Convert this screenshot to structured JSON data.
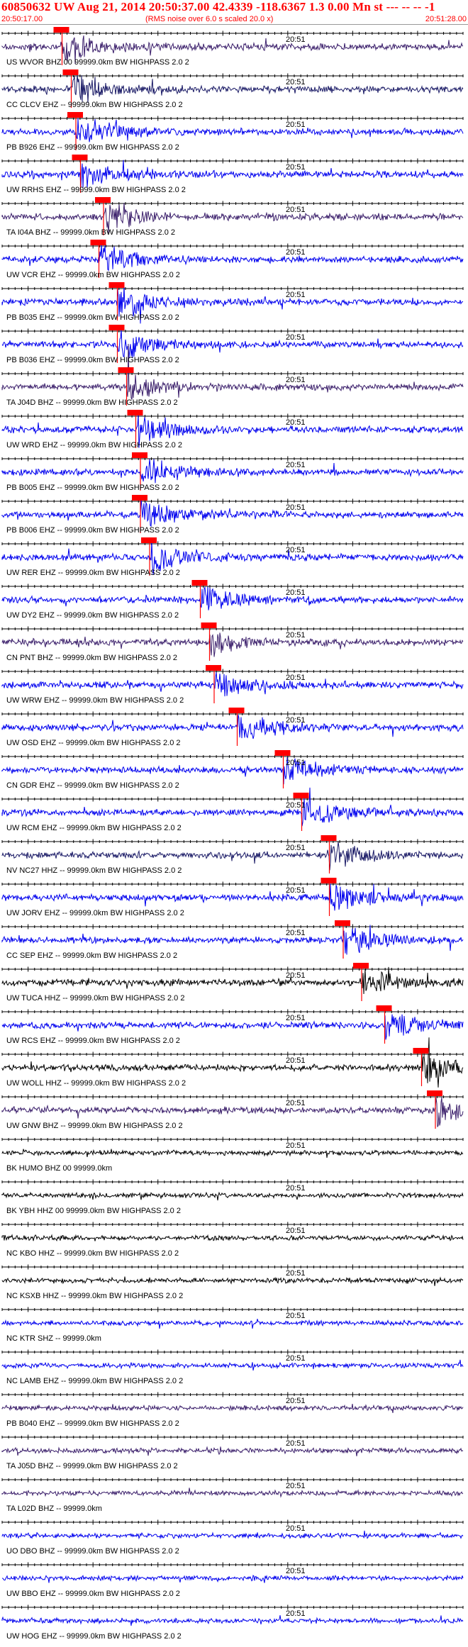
{
  "header": {
    "event_line": "60850632 UW Aug 21, 2014 20:50:37.00   42.4339 -118.6367  1.3 0.00 Mn st --- -- --  -1",
    "start_time": "20:50:17.00",
    "noise_note": "(RMS noise over 6.0 s scaled 20.0 x)",
    "end_time": "20:51:28.00"
  },
  "minute_marker": "20:51",
  "colors": {
    "title": "#ff0000",
    "pick": "#ff0000",
    "blue": "#0000ee",
    "navy": "#1a1a66",
    "purple": "#3b1f6b",
    "black": "#000000"
  },
  "channels": [
    {
      "label": "US WVOR BHZ 00 99999.0km BW  HIGHPASS  2.0  2",
      "color": "#3b1f6b",
      "pick": 0.13
    },
    {
      "label": "CC CLCV EHZ -- 99999.0km BW  HIGHPASS  2.0  2",
      "color": "#1a1a66",
      "pick": 0.15
    },
    {
      "label": "PB B926 EHZ -- 99999.0km BW  HIGHPASS  2.0  2",
      "color": "#0000ee",
      "pick": 0.16
    },
    {
      "label": "UW RRHS EHZ -- 99999.0km BW  HIGHPASS  2.0  2",
      "color": "#0000ee",
      "pick": 0.17
    },
    {
      "label": "TA I04A BHZ -- 99999.0km BW  HIGHPASS  2.0  2",
      "color": "#3b1f6b",
      "pick": 0.22
    },
    {
      "label": "UW VCR EHZ -- 99999.0km BW  HIGHPASS  2.0  2",
      "color": "#0000ee",
      "pick": 0.21
    },
    {
      "label": "PB B035 EHZ -- 99999.0km BW  HIGHPASS  2.0  2",
      "color": "#0000ee",
      "pick": 0.25
    },
    {
      "label": "PB B036 EHZ -- 99999.0km BW  HIGHPASS  2.0  2",
      "color": "#0000ee",
      "pick": 0.25
    },
    {
      "label": "TA J04D BHZ -- 99999.0km BW  HIGHPASS  2.0  2",
      "color": "#3b1f6b",
      "pick": 0.27
    },
    {
      "label": "UW WRD EHZ -- 99999.0km BW  HIGHPASS  2.0  2",
      "color": "#0000ee",
      "pick": 0.29
    },
    {
      "label": "PB B005 EHZ -- 99999.0km BW  HIGHPASS  2.0  2",
      "color": "#0000ee",
      "pick": 0.3
    },
    {
      "label": "PB B006 EHZ -- 99999.0km BW  HIGHPASS  2.0  2",
      "color": "#0000ee",
      "pick": 0.3
    },
    {
      "label": "UW RER EHZ -- 99999.0km BW  HIGHPASS  2.0  2",
      "color": "#0000ee",
      "pick": 0.32
    },
    {
      "label": "UW DY2 EHZ -- 99999.0km BW  HIGHPASS  2.0  2",
      "color": "#0000ee",
      "pick": 0.43
    },
    {
      "label": "CN PNT BHZ -- 99999.0km BW  HIGHPASS  2.0  2",
      "color": "#3b1f6b",
      "pick": 0.45
    },
    {
      "label": "UW WRW EHZ -- 99999.0km BW  HIGHPASS  2.0  2",
      "color": "#0000ee",
      "pick": 0.46
    },
    {
      "label": "UW OSD EHZ -- 99999.0km BW  HIGHPASS  2.0  2",
      "color": "#0000ee",
      "pick": 0.51
    },
    {
      "label": "CN GDR EHZ -- 99999.0km BW  HIGHPASS  2.0  2",
      "color": "#0000ee",
      "pick": 0.61
    },
    {
      "label": "UW RCM EHZ -- 99999.0km BW  HIGHPASS  2.0  2",
      "color": "#0000ee",
      "pick": 0.65
    },
    {
      "label": "NV NC27 HHZ -- 99999.0km BW  HIGHPASS  2.0  2",
      "color": "#1a1a66",
      "pick": 0.71
    },
    {
      "label": "UW JORV EHZ -- 99999.0km BW  HIGHPASS  2.0  2",
      "color": "#0000ee",
      "pick": 0.71
    },
    {
      "label": "CC SEP EHZ -- 99999.0km BW  HIGHPASS  2.0  2",
      "color": "#0000ee",
      "pick": 0.74
    },
    {
      "label": "UW TUCA HHZ -- 99999.0km BW  HIGHPASS  2.0  2",
      "color": "#000000",
      "pick": 0.78
    },
    {
      "label": "UW RCS EHZ -- 99999.0km BW  HIGHPASS  2.0  2",
      "color": "#0000ee",
      "pick": 0.83
    },
    {
      "label": "UW WOLL HHZ -- 99999.0km BW  HIGHPASS  2.0  2",
      "color": "#000000",
      "pick": 0.91
    },
    {
      "label": "UW GNW BHZ -- 99999.0km BW  HIGHPASS  2.0  2",
      "color": "#3b1f6b",
      "pick": 0.94
    },
    {
      "label": "BK HUMO BHZ 00 99999.0km",
      "color": "#000000",
      "pick": null
    },
    {
      "label": "BK YBH HHZ 00 99999.0km BW  HIGHPASS  2.0  2",
      "color": "#000000",
      "pick": null
    },
    {
      "label": "NC KBO HHZ -- 99999.0km BW  HIGHPASS  2.0  2",
      "color": "#000000",
      "pick": null
    },
    {
      "label": "NC KSXB HHZ -- 99999.0km BW  HIGHPASS  2.0  2",
      "color": "#000000",
      "pick": null
    },
    {
      "label": "NC KTR SHZ -- 99999.0km",
      "color": "#0000ee",
      "pick": null
    },
    {
      "label": "NC LAMB EHZ -- 99999.0km BW  HIGHPASS  2.0  2",
      "color": "#0000ee",
      "pick": null
    },
    {
      "label": "PB B040 EHZ -- 99999.0km BW  HIGHPASS  2.0  2",
      "color": "#3b1f6b",
      "pick": null
    },
    {
      "label": "TA J05D BHZ -- 99999.0km BW  HIGHPASS  2.0  2",
      "color": "#3b1f6b",
      "pick": null
    },
    {
      "label": "TA L02D BHZ -- 99999.0km",
      "color": "#3b1f6b",
      "pick": null
    },
    {
      "label": "UO DBO BHZ -- 99999.0km BW  HIGHPASS  2.0  2",
      "color": "#0000ee",
      "pick": null
    },
    {
      "label": "UW BBO EHZ -- 99999.0km BW  HIGHPASS  2.0  2",
      "color": "#0000ee",
      "pick": null
    },
    {
      "label": "UW HOG EHZ -- 99999.0km BW  HIGHPASS  2.0  2",
      "color": "#0000ee",
      "pick": null
    }
  ]
}
